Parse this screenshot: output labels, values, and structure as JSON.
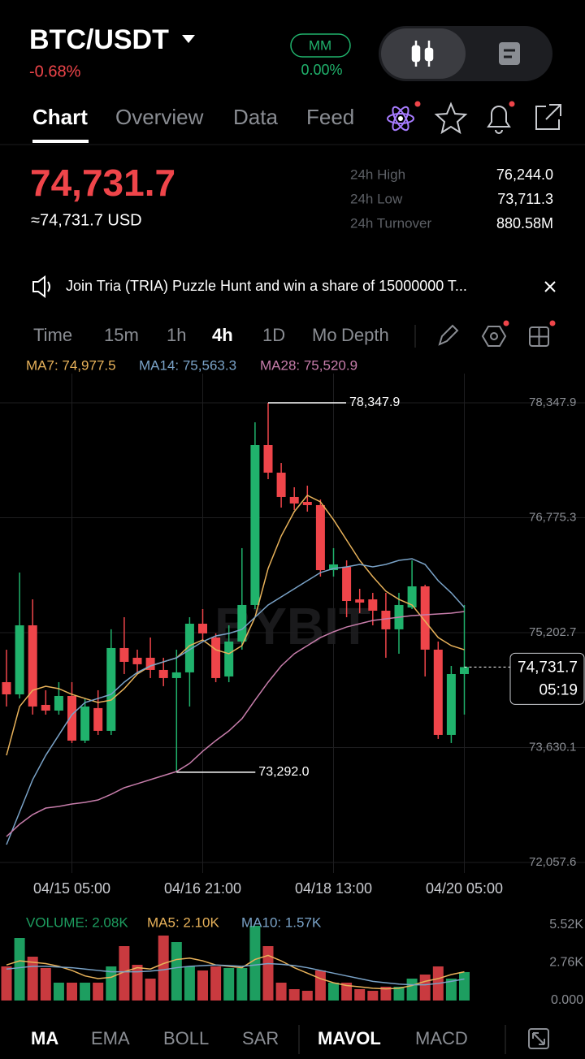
{
  "header": {
    "pair": "BTC/USDT",
    "change": "-0.68%",
    "mm_badge": "MM",
    "mm_value": "0.00%"
  },
  "tabs": [
    "Chart",
    "Overview",
    "Data",
    "Feed"
  ],
  "price": {
    "last": "74,731.7",
    "usd": "≈74,731.7 USD"
  },
  "stats": [
    [
      "24h High",
      "76,244.0"
    ],
    [
      "24h Low",
      "73,711.3"
    ],
    [
      "24h Turnover",
      "880.58M"
    ]
  ],
  "banner": "Join Tria (TRIA) Puzzle Hunt and win a share of 15000000 T...",
  "timeframes": [
    "Time",
    "15m",
    "1h",
    "4h",
    "1D",
    "Mo",
    "Depth"
  ],
  "watermark": "BYBIT",
  "indicator_tabs": [
    "MA",
    "EMA",
    "BOLL",
    "SAR",
    "MAVOL",
    "MACD"
  ],
  "chart_data": [
    {
      "type": "candlestick",
      "categories": [
        null,
        null,
        null,
        null,
        null,
        "04/15 05:00",
        null,
        null,
        null,
        null,
        null,
        null,
        null,
        null,
        null,
        "04/16 21:00",
        null,
        null,
        null,
        null,
        null,
        null,
        null,
        null,
        null,
        "04/18 13:00",
        null,
        null,
        null,
        null,
        null,
        null,
        null,
        null,
        null,
        "04/20 05:00"
      ],
      "open": [
        74525,
        74358,
        75303,
        74214,
        74136,
        74336,
        73725,
        74170,
        73859,
        74992,
        74859,
        74859,
        74692,
        74581,
        74659,
        75325,
        75136,
        74603,
        75081,
        75581,
        77770,
        77392,
        77059,
        76992,
        76948,
        76058,
        76103,
        75658,
        75658,
        75503,
        75248,
        75547,
        75836,
        74970,
        73803,
        74636
      ],
      "high": [
        74969,
        76025,
        75658,
        74414,
        74525,
        74525,
        74302,
        74414,
        75248,
        75414,
        74970,
        75136,
        74859,
        74970,
        75414,
        75525,
        75192,
        75303,
        76359,
        78081,
        78347.9,
        77525,
        77192,
        77214,
        77025,
        76359,
        76192,
        75803,
        75747,
        75747,
        75747,
        76192,
        75858,
        75081,
        74747,
        75581
      ],
      "low": [
        74192,
        74302,
        74081,
        74081,
        74081,
        73692,
        73692,
        73803,
        73803,
        74636,
        74636,
        74581,
        74470,
        73292.0,
        74192,
        75081,
        74525,
        74525,
        74970,
        75525,
        77303,
        76914,
        76881,
        76859,
        75970,
        75970,
        75414,
        75470,
        75303,
        74859,
        74914,
        75525,
        74603,
        73748,
        73692,
        74081
      ],
      "close": [
        74358,
        75303,
        74192,
        74136,
        74336,
        73725,
        74192,
        73859,
        74992,
        74803,
        74770,
        74692,
        74581,
        74659,
        75325,
        75192,
        74581,
        75081,
        75581,
        77770,
        77392,
        77059,
        76970,
        76948,
        76058,
        76136,
        75636,
        75614,
        75503,
        75248,
        75581,
        75836,
        74970,
        73803,
        74636,
        74731.7
      ],
      "up_color": "#20b26c",
      "down_color": "#ef454a",
      "series": [
        {
          "name": "MA7: 74,977.5",
          "color": "#e8b25a",
          "values": [
            73524,
            74191,
            74414,
            74469,
            74436,
            74358,
            74302,
            74247,
            74280,
            74436,
            74636,
            74747,
            74803,
            74858,
            75025,
            75103,
            74969,
            74914,
            75025,
            75414,
            76081,
            76525,
            76859,
            77081,
            76992,
            76748,
            76470,
            76192,
            75970,
            75770,
            75658,
            75581,
            75358,
            75136,
            75025,
            74969
          ]
        },
        {
          "name": "MA14: 75,563.3",
          "color": "#7aa3c8",
          "values": [
            72302,
            72747,
            73191,
            73524,
            73802,
            74080,
            74247,
            74302,
            74358,
            74525,
            74658,
            74747,
            74803,
            74858,
            74969,
            75080,
            75158,
            75192,
            75247,
            75414,
            75581,
            75692,
            75803,
            75914,
            76025,
            76081,
            76103,
            76136,
            76103,
            76136,
            76192,
            76214,
            76136,
            75914,
            75747,
            75547
          ]
        },
        {
          "name": "MA28: 75,520.9",
          "color": "#c77dab",
          "values": [
            72413,
            72580,
            72713,
            72802,
            72824,
            72858,
            72880,
            72913,
            72991,
            73080,
            73135,
            73191,
            73247,
            73302,
            73413,
            73580,
            73725,
            73858,
            74025,
            74280,
            74525,
            74747,
            74914,
            75025,
            75136,
            75214,
            75280,
            75325,
            75369,
            75392,
            75414,
            75436,
            75447,
            75458,
            75470,
            75492
          ]
        }
      ],
      "ylim": [
        72057.6,
        78347.9
      ],
      "yticks": [
        {
          "value": 72057.6,
          "label": "72,057.6"
        },
        {
          "value": 73630.1,
          "label": "73,630.1"
        },
        {
          "value": 75202.7,
          "label": "75,202.7"
        },
        {
          "value": 76775.3,
          "label": "76,775.3"
        },
        {
          "value": 78347.9,
          "label": "78,347.9"
        }
      ],
      "grid": true,
      "max_label": "78,347.9",
      "min_label": "73,292.0",
      "last_label": "74,731.7",
      "countdown": "05:19"
    },
    {
      "type": "bar",
      "name": "VOLUME: 2.08K",
      "values": [
        2493,
        4570,
        3205,
        2374,
        1306,
        1306,
        1306,
        1306,
        2493,
        3976,
        2611,
        1602,
        4748,
        4273,
        2493,
        2196,
        2493,
        2374,
        2374,
        5460,
        3976,
        1306,
        831,
        712,
        2196,
        1306,
        1306,
        831,
        712,
        1009,
        1009,
        1602,
        1899,
        2493,
        1602,
        2080
      ],
      "up_color": "#1d9e60",
      "down_color": "#c93a3f",
      "series": [
        {
          "name": "MA5: 2.10K",
          "color": "#e8b25a",
          "values": [
            2600,
            2900,
            2800,
            2700,
            2500,
            2200,
            1800,
            1600,
            1700,
            2100,
            2400,
            2300,
            2700,
            3000,
            3100,
            2900,
            2600,
            2500,
            2400,
            3000,
            3300,
            2900,
            2400,
            2000,
            1600,
            1300,
            1100,
            1000,
            900,
            850,
            900,
            1100,
            1400,
            1600,
            1900,
            2100
          ]
        },
        {
          "name": "MA10: 1.57K",
          "color": "#7aa3c8",
          "values": [
            2300,
            2400,
            2500,
            2500,
            2450,
            2400,
            2300,
            2200,
            2100,
            2100,
            2100,
            2150,
            2250,
            2400,
            2500,
            2550,
            2600,
            2550,
            2500,
            2600,
            2700,
            2650,
            2550,
            2400,
            2200,
            2000,
            1800,
            1600,
            1400,
            1300,
            1200,
            1150,
            1150,
            1250,
            1400,
            1570
          ]
        }
      ],
      "ylim": [
        0,
        5520
      ],
      "yticks": [
        {
          "value": 0,
          "label": "0.000"
        },
        {
          "value": 2760,
          "label": "2.76K"
        },
        {
          "value": 5520,
          "label": "5.52K"
        }
      ]
    }
  ]
}
